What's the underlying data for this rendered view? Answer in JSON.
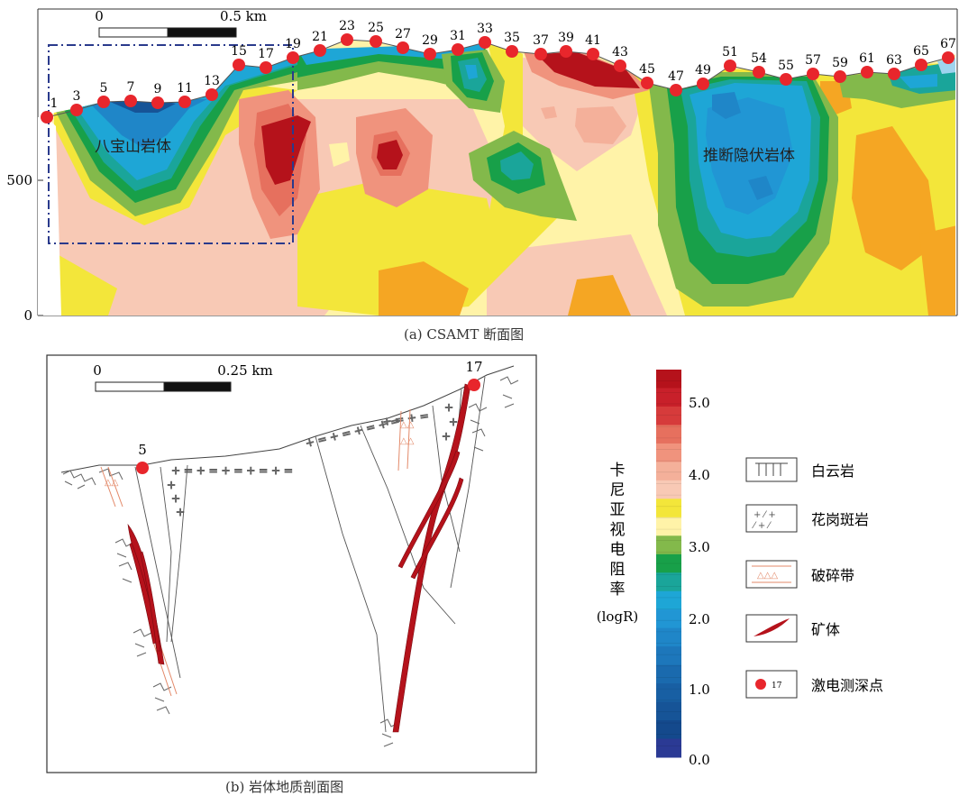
{
  "panel_a": {
    "caption": "(a) CSAMT 断面图",
    "scale": {
      "start": "0",
      "end": "0.5 km"
    },
    "y_ticks": [
      "500",
      "0"
    ],
    "station_labels": [
      "1",
      "3",
      "5",
      "7",
      "9",
      "11",
      "13",
      "15",
      "17",
      "19",
      "21",
      "23",
      "25",
      "27",
      "29",
      "31",
      "33",
      "35",
      "37",
      "39",
      "41",
      "43",
      "45",
      "47",
      "49",
      "51",
      "54",
      "55",
      "57",
      "59",
      "61",
      "63",
      "65",
      "67"
    ],
    "annotations": {
      "left_body": "八宝山岩体",
      "right_body": "推断隐伏岩体"
    }
  },
  "panel_b": {
    "caption": "(b) 岩体地质剖面图",
    "scale": {
      "start": "0",
      "end": "0.25 km"
    },
    "point_labels": {
      "left": "5",
      "right": "17"
    }
  },
  "colorbar": {
    "title_chars": [
      "卡",
      "尼",
      "亚",
      "视",
      "电",
      "阻",
      "率"
    ],
    "unit": "(logR)",
    "ticks": [
      "5.0",
      "4.0",
      "3.0",
      "2.0",
      "1.0",
      "0.0"
    ],
    "colors": [
      "#b5121b",
      "#c8202a",
      "#d63b3b",
      "#e6705e",
      "#f0937d",
      "#f4b09a",
      "#f8c9b5",
      "#f3e63a",
      "#fff3a8",
      "#83b94b",
      "#18a049",
      "#1aa59a",
      "#1ea6d6",
      "#2196d4",
      "#1f86c8",
      "#1d77bb",
      "#1a6aae",
      "#185fa3",
      "#165497",
      "#14498c",
      "#2b3a94"
    ]
  },
  "legend": [
    {
      "label": "白云岩",
      "icon": "dolomite-pattern"
    },
    {
      "label": "花岗斑岩",
      "icon": "granite-porphyry-pattern"
    },
    {
      "label": "破碎带",
      "icon": "fracture-zone-pattern"
    },
    {
      "label": "矿体",
      "icon": "ore-body-lens"
    },
    {
      "label": "激电测深点",
      "icon": "red-dot",
      "sample": "17"
    }
  ],
  "colors": {
    "station_dot": "#e8262c",
    "ore_body": "#b5121b",
    "dashdot_box": "#2a3a8c"
  }
}
